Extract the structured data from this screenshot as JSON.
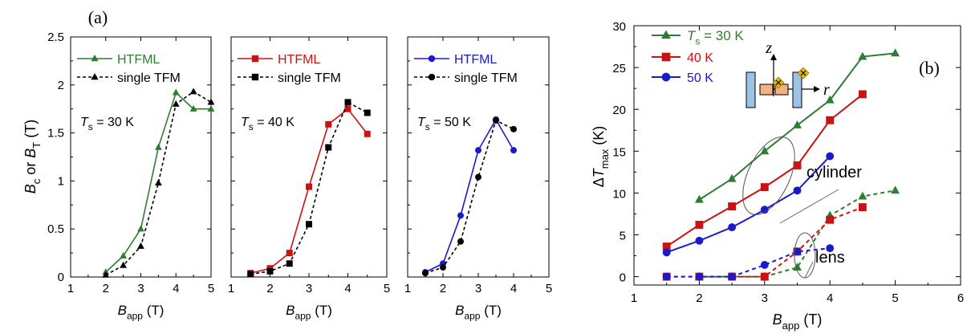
{
  "figure": {
    "panel_a_label": "(a)",
    "panel_b_label": "(b)"
  },
  "chart_data": [
    {
      "type": "line",
      "panel": "(a)",
      "annotation": {
        "main": "T",
        "sub": "s",
        "rest": " = 30 K"
      },
      "ylabel": {
        "p1": "B",
        "s1": "c",
        "p2": " or ",
        "p3": "B",
        "s2": "T",
        "p4": " (T)"
      },
      "xlabel": {
        "main": "B",
        "sub": "app",
        "rest": " (T)"
      },
      "xlim": [
        1,
        5
      ],
      "ylim": [
        0,
        2.5
      ],
      "xticks": [
        "1",
        "2",
        "3",
        "4",
        "5"
      ],
      "yticks": [
        "0",
        "0.5",
        "1",
        "1.5",
        "2",
        "2.5"
      ],
      "marker": "triangle",
      "color": "#2e7d32",
      "series": [
        {
          "name": "HTFML",
          "style": "solid",
          "x": [
            2.0,
            2.5,
            3.0,
            3.5,
            4.0,
            4.5,
            5.0
          ],
          "y": [
            0.05,
            0.22,
            0.5,
            1.35,
            1.92,
            1.75,
            1.75
          ]
        },
        {
          "name": "single TFM",
          "style": "dashed",
          "x": [
            2.0,
            2.5,
            3.0,
            3.5,
            4.0,
            4.5,
            5.0
          ],
          "y": [
            0.02,
            0.12,
            0.32,
            0.98,
            1.8,
            1.93,
            1.82
          ]
        }
      ]
    },
    {
      "type": "line",
      "annotation": {
        "main": "T",
        "sub": "s",
        "rest": " = 40 K"
      },
      "xlabel": {
        "main": "B",
        "sub": "app",
        "rest": " (T)"
      },
      "xlim": [
        1,
        5
      ],
      "ylim": [
        0,
        2.5
      ],
      "xticks": [
        "1",
        "2",
        "3",
        "4",
        "5"
      ],
      "marker": "square",
      "color": "#cc1111",
      "series": [
        {
          "name": "HTFML",
          "style": "solid",
          "x": [
            1.5,
            2.0,
            2.5,
            3.0,
            3.5,
            4.0,
            4.5
          ],
          "y": [
            0.04,
            0.09,
            0.25,
            0.94,
            1.59,
            1.75,
            1.49
          ]
        },
        {
          "name": "single TFM",
          "style": "dashed",
          "x": [
            1.5,
            2.0,
            2.5,
            3.0,
            3.5,
            4.0,
            4.5
          ],
          "y": [
            0.03,
            0.06,
            0.14,
            0.55,
            1.35,
            1.82,
            1.71
          ]
        }
      ]
    },
    {
      "type": "line",
      "annotation": {
        "main": "T",
        "sub": "s",
        "rest": " = 50 K"
      },
      "xlabel": {
        "main": "B",
        "sub": "app",
        "rest": " (T)"
      },
      "xlim": [
        1,
        5
      ],
      "ylim": [
        0,
        2.5
      ],
      "xticks": [
        "1",
        "2",
        "3",
        "4",
        "5"
      ],
      "marker": "circle",
      "color": "#1a1acc",
      "series": [
        {
          "name": "HTFML",
          "style": "solid",
          "x": [
            1.5,
            2.0,
            2.5,
            3.0,
            3.5,
            4.0
          ],
          "y": [
            0.05,
            0.14,
            0.64,
            1.32,
            1.64,
            1.32
          ]
        },
        {
          "name": "single TFM",
          "style": "dashed",
          "x": [
            1.5,
            2.0,
            2.5,
            3.0,
            3.5,
            4.0
          ],
          "y": [
            0.04,
            0.1,
            0.37,
            1.04,
            1.63,
            1.54
          ]
        }
      ]
    },
    {
      "type": "line",
      "panel": "(b)",
      "ylabel": {
        "pre": "Δ",
        "main": "T",
        "sub": "max",
        "rest": " (K)"
      },
      "xlabel": {
        "main": "B",
        "sub": "app",
        "rest": " (T)"
      },
      "xlim": [
        1,
        6
      ],
      "ylim": [
        -1,
        30
      ],
      "xticks": [
        "1",
        "2",
        "3",
        "4",
        "5",
        "6"
      ],
      "yticks": [
        "0",
        "5",
        "10",
        "15",
        "20",
        "25",
        "30"
      ],
      "legend": [
        {
          "main": "T",
          "sub": "s",
          "rest": " = 30 K",
          "color": "#2e7d32",
          "marker": "triangle"
        },
        {
          "text": "40 K",
          "color": "#cc1111",
          "marker": "square"
        },
        {
          "text": "50 K",
          "color": "#1a1acc",
          "marker": "circle"
        }
      ],
      "annotations": [
        "cylinder",
        "lens"
      ],
      "inset": {
        "z_label": "z",
        "r_label": "r"
      },
      "series": [
        {
          "group": "cylinder",
          "color": "#2e7d32",
          "marker": "triangle",
          "style": "solid",
          "x": [
            2.0,
            2.5,
            3.0,
            3.5,
            4.0,
            4.5,
            5.0
          ],
          "y": [
            9.2,
            11.7,
            15.0,
            18.1,
            21.1,
            26.3,
            26.7
          ]
        },
        {
          "group": "cylinder",
          "color": "#cc1111",
          "marker": "square",
          "style": "solid",
          "x": [
            1.5,
            2.0,
            2.5,
            3.0,
            3.5,
            4.0,
            4.5
          ],
          "y": [
            3.6,
            6.2,
            8.4,
            10.7,
            13.3,
            18.7,
            21.8
          ]
        },
        {
          "group": "cylinder",
          "color": "#1a1acc",
          "marker": "circle",
          "style": "solid",
          "x": [
            1.5,
            2.0,
            2.5,
            3.0,
            3.5,
            4.0
          ],
          "y": [
            2.9,
            4.3,
            5.9,
            8.0,
            10.3,
            14.4
          ]
        },
        {
          "group": "lens",
          "color": "#2e7d32",
          "marker": "triangle",
          "style": "dashed",
          "x": [
            2.0,
            2.5,
            3.0,
            3.5,
            4.0,
            4.5,
            5.0
          ],
          "y": [
            0.0,
            0.0,
            0.0,
            1.1,
            7.3,
            9.6,
            10.3
          ]
        },
        {
          "group": "lens",
          "color": "#cc1111",
          "marker": "square",
          "style": "dashed",
          "x": [
            1.5,
            2.0,
            2.5,
            3.0,
            3.5,
            4.0,
            4.5
          ],
          "y": [
            0.0,
            0.0,
            0.0,
            0.0,
            3.0,
            6.8,
            8.3
          ]
        },
        {
          "group": "lens",
          "color": "#1a1acc",
          "marker": "circle",
          "style": "dashed",
          "x": [
            1.5,
            2.0,
            2.5,
            3.0,
            3.5,
            4.0
          ],
          "y": [
            0.0,
            0.0,
            0.0,
            1.4,
            3.0,
            3.4
          ]
        }
      ]
    }
  ]
}
